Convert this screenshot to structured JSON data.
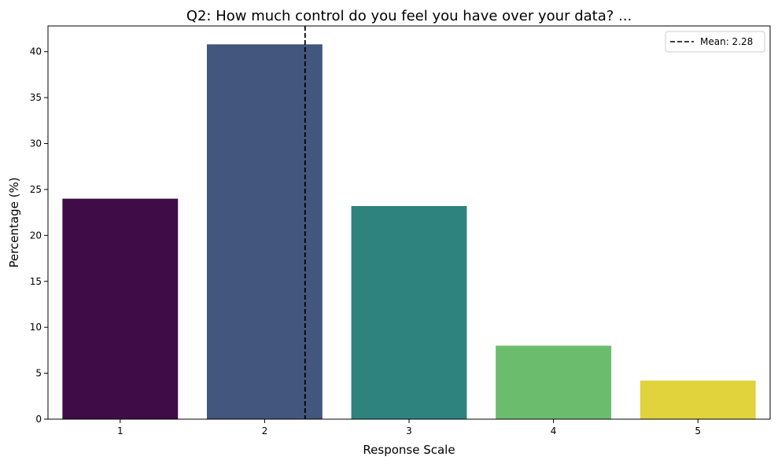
{
  "chart_data": {
    "type": "bar",
    "title": "Q2: How much control do you feel you have over your data? ...",
    "xlabel": "Response Scale",
    "ylabel": "Percentage (%)",
    "categories": [
      "1",
      "2",
      "3",
      "4",
      "5"
    ],
    "values": [
      24.0,
      40.8,
      23.2,
      8.0,
      4.2
    ],
    "colors": [
      "#3f0c47",
      "#43567e",
      "#2e837e",
      "#6bbd6d",
      "#e1d33b"
    ],
    "ylim": [
      0,
      42.8
    ],
    "yticks": [
      0,
      5,
      10,
      15,
      20,
      25,
      30,
      35,
      40
    ],
    "mean": {
      "value": 2.28,
      "label": "Mean: 2.28",
      "style": "dashed",
      "color": "#000000"
    },
    "grid": false,
    "legend_position": "top-right"
  }
}
